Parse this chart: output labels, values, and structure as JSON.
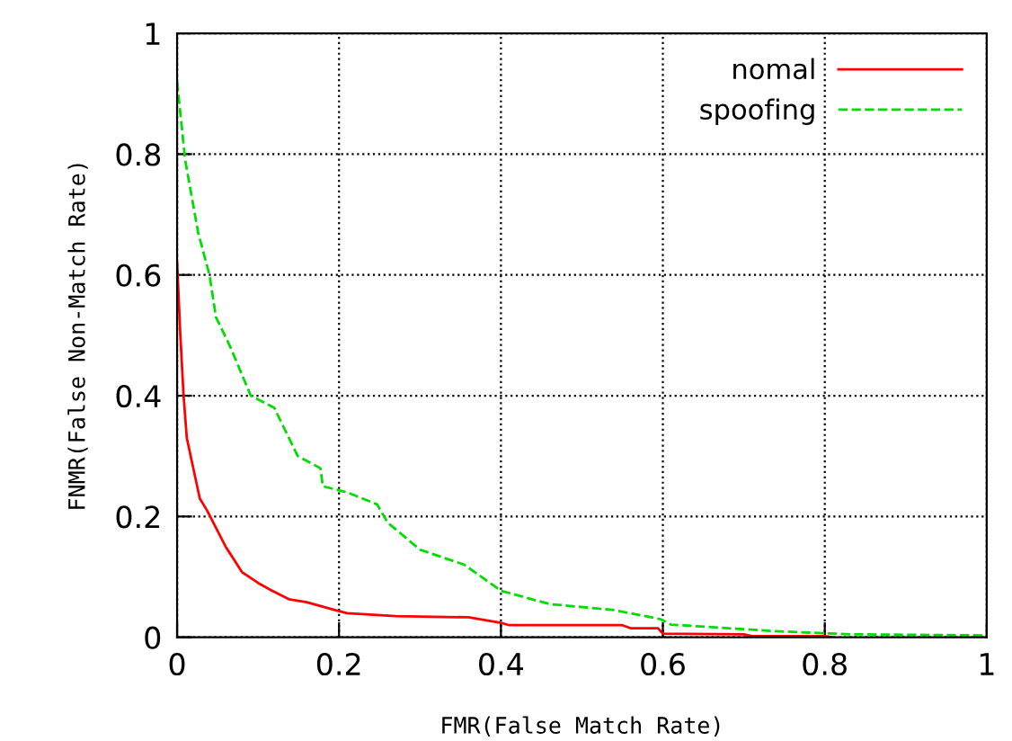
{
  "chart_data": {
    "type": "line",
    "xlabel": "FMR(False Match Rate)",
    "ylabel": "FNMR(False Non-Match Rate)",
    "xlim": [
      0,
      1
    ],
    "ylim": [
      0,
      1
    ],
    "xticks": [
      0,
      0.2,
      0.4,
      0.6,
      0.8,
      1
    ],
    "yticks": [
      0,
      0.2,
      0.4,
      0.6,
      0.8,
      1
    ],
    "grid": true,
    "legend": "top right",
    "series": [
      {
        "name": "nomal",
        "color": "#ff0000",
        "line_style": "solid",
        "x": [
          0,
          0.004,
          0.008,
          0.012,
          0.019,
          0.028,
          0.037,
          0.06,
          0.08,
          0.1,
          0.116,
          0.138,
          0.16,
          0.195,
          0.21,
          0.27,
          0.36,
          0.4,
          0.41,
          0.55,
          0.56,
          0.594,
          0.6,
          0.7,
          0.71,
          0.8,
          0.81
        ],
        "values": [
          0.62,
          0.5,
          0.4,
          0.33,
          0.286,
          0.23,
          0.21,
          0.15,
          0.108,
          0.09,
          0.078,
          0.063,
          0.058,
          0.045,
          0.04,
          0.035,
          0.033,
          0.024,
          0.02,
          0.02,
          0.015,
          0.015,
          0.006,
          0.005,
          0.002,
          0.002,
          0
        ]
      },
      {
        "name": "spoofing",
        "color": "#00dd00",
        "line_style": "dashed",
        "x": [
          0,
          0.01,
          0.026,
          0.04,
          0.048,
          0.066,
          0.091,
          0.12,
          0.149,
          0.177,
          0.18,
          0.21,
          0.247,
          0.26,
          0.3,
          0.355,
          0.4,
          0.46,
          0.54,
          0.597,
          0.61,
          0.74,
          0.83,
          1.0
        ],
        "values": [
          0.92,
          0.79,
          0.67,
          0.6,
          0.53,
          0.48,
          0.4,
          0.38,
          0.3,
          0.28,
          0.25,
          0.24,
          0.22,
          0.19,
          0.145,
          0.12,
          0.077,
          0.055,
          0.045,
          0.03,
          0.021,
          0.01,
          0.005,
          0.003
        ]
      }
    ]
  }
}
